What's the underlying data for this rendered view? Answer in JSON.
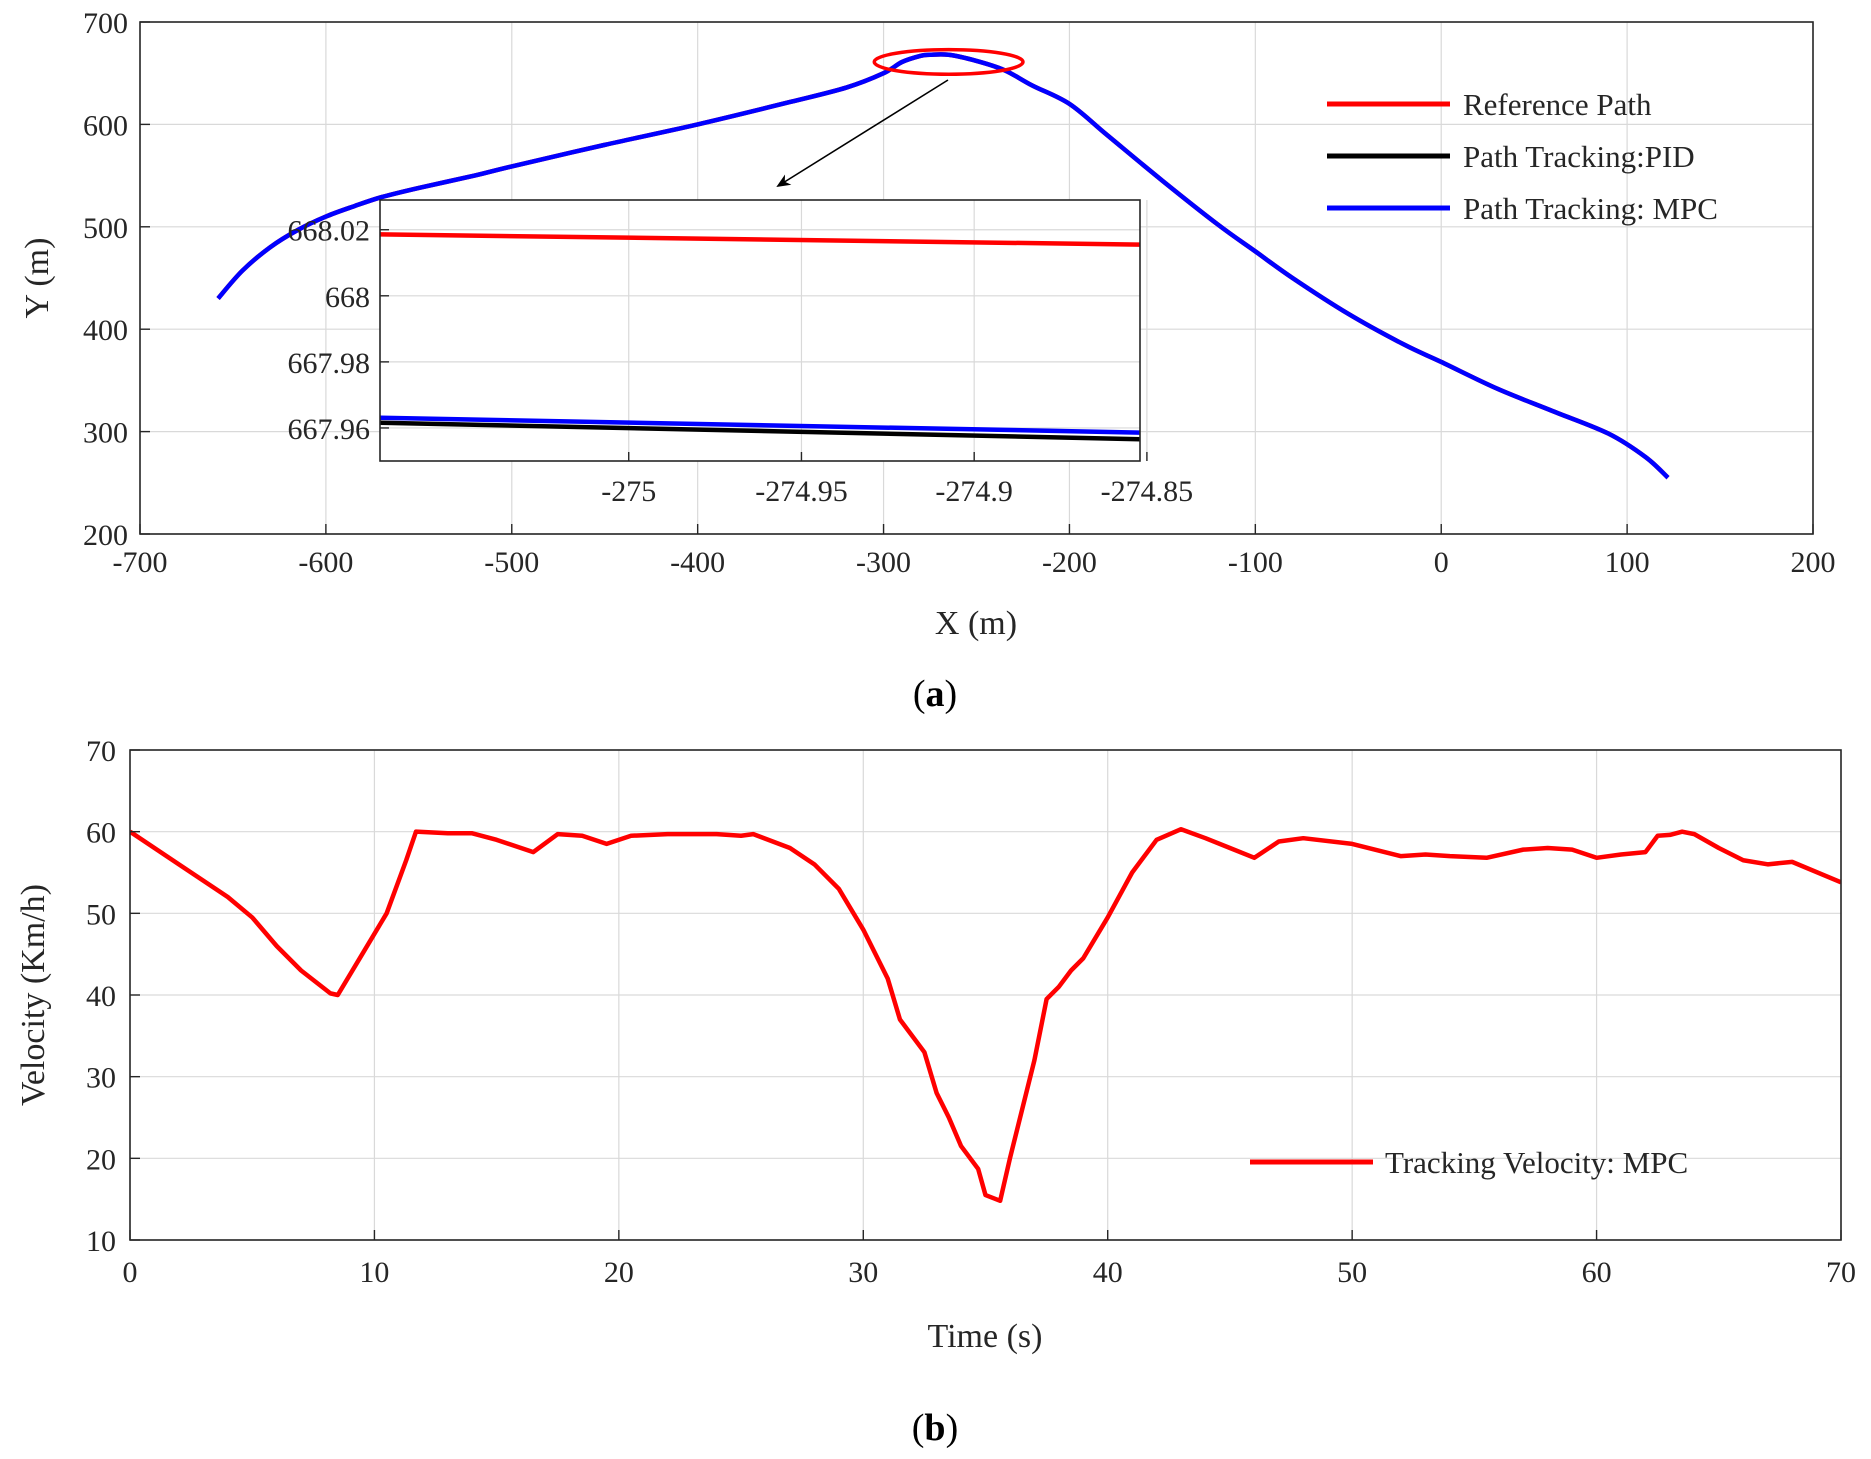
{
  "colors": {
    "reference": "#ff0000",
    "pid": "#000000",
    "mpc": "#0000ff",
    "velocity": "#ff0000",
    "highlight": "#ff0000"
  },
  "captions": {
    "a_open": "(",
    "a_letter": "a",
    "a_close": ")",
    "b_open": "(",
    "b_letter": "b",
    "b_close": ")"
  },
  "chart_data": [
    {
      "id": "a",
      "type": "line",
      "xlabel": "X (m)",
      "ylabel": "Y (m)",
      "xlim": [
        -700,
        200
      ],
      "ylim": [
        200,
        700
      ],
      "xticks": [
        -700,
        -600,
        -500,
        -400,
        -300,
        -200,
        -100,
        0,
        100,
        200
      ],
      "xtick_labels": [
        "-700",
        "-600",
        "-500",
        "-400",
        "-300",
        "-200",
        "-100",
        "0",
        "100",
        "200"
      ],
      "yticks": [
        200,
        300,
        400,
        500,
        600,
        700
      ],
      "ytick_labels": [
        "200",
        "300",
        "400",
        "500",
        "600",
        "700"
      ],
      "grid": true,
      "legend_position": "upper-right",
      "legend": [
        "Reference Path",
        "Path Tracking:PID",
        "Path Tracking: MPC"
      ],
      "highlight_region": {
        "center": [
          -265,
          661
        ],
        "half_width": [
          40,
          12
        ]
      },
      "path_points": [
        [
          -658,
          430
        ],
        [
          -645,
          457
        ],
        [
          -630,
          480
        ],
        [
          -615,
          497
        ],
        [
          -600,
          510
        ],
        [
          -585,
          520
        ],
        [
          -570,
          529
        ],
        [
          -550,
          538
        ],
        [
          -520,
          550
        ],
        [
          -500,
          559
        ],
        [
          -450,
          580
        ],
        [
          -400,
          600
        ],
        [
          -350,
          622
        ],
        [
          -320,
          636
        ],
        [
          -300,
          650
        ],
        [
          -290,
          661
        ],
        [
          -280,
          667
        ],
        [
          -275,
          668
        ],
        [
          -265,
          668
        ],
        [
          -250,
          662
        ],
        [
          -235,
          653
        ],
        [
          -220,
          638
        ],
        [
          -200,
          620
        ],
        [
          -180,
          590
        ],
        [
          -150,
          545
        ],
        [
          -120,
          502
        ],
        [
          -100,
          476
        ],
        [
          -80,
          450
        ],
        [
          -50,
          415
        ],
        [
          -20,
          385
        ],
        [
          0,
          368
        ],
        [
          30,
          342
        ],
        [
          60,
          320
        ],
        [
          90,
          298
        ],
        [
          110,
          275
        ],
        [
          122,
          255
        ]
      ],
      "inset": {
        "xlim": [
          -275.072,
          -274.852
        ],
        "ylim": [
          667.95,
          668.029
        ],
        "xticks": [
          -275,
          -274.95,
          -274.9,
          -274.85
        ],
        "xtick_labels": [
          "-275",
          "-274.95",
          "-274.9",
          "-274.85"
        ],
        "yticks": [
          667.96,
          667.98,
          668,
          668.02
        ],
        "ytick_labels": [
          "667.96",
          "667.98",
          "668",
          "668.02"
        ],
        "series": [
          {
            "name": "Reference Path",
            "x": [
              -275.072,
              -274.852
            ],
            "y": [
              668.0186,
              668.0155
            ]
          },
          {
            "name": "Path Tracking:PID",
            "x": [
              -275.072,
              -274.852
            ],
            "y": [
              667.9616,
              667.9566
            ]
          },
          {
            "name": "Path Tracking: MPC",
            "x": [
              -275.072,
              -274.852
            ],
            "y": [
              667.9631,
              667.9586
            ]
          }
        ]
      }
    },
    {
      "id": "b",
      "type": "line",
      "xlabel": "Time (s)",
      "ylabel": "Velocity (Km/h)",
      "xlim": [
        0,
        70
      ],
      "ylim": [
        10,
        70
      ],
      "xticks": [
        0,
        10,
        20,
        30,
        40,
        50,
        60,
        70
      ],
      "xtick_labels": [
        "0",
        "10",
        "20",
        "30",
        "40",
        "50",
        "60",
        "70"
      ],
      "yticks": [
        10,
        20,
        30,
        40,
        50,
        60,
        70
      ],
      "ytick_labels": [
        "10",
        "20",
        "30",
        "40",
        "50",
        "60",
        "70"
      ],
      "grid": true,
      "legend_position": "lower-right",
      "legend": [
        "Tracking Velocity: MPC"
      ],
      "series": [
        {
          "name": "Tracking Velocity: MPC",
          "x": [
            0,
            2,
            4,
            5,
            6,
            7,
            8.2,
            8.5,
            9.5,
            10.5,
            11.3,
            11.7,
            13,
            14,
            15,
            16.5,
            17.5,
            18.5,
            19.5,
            20.5,
            22,
            24,
            25,
            25.5,
            27,
            28,
            29,
            30,
            31,
            31.5,
            32.5,
            33,
            33.5,
            34,
            34.7,
            35,
            35.6,
            36,
            37,
            37.5,
            38,
            38.5,
            39,
            40,
            41,
            42,
            43,
            44,
            45,
            46,
            47,
            48,
            50,
            52,
            53,
            54,
            55.5,
            57,
            58,
            59,
            60,
            61,
            62,
            62.5,
            63,
            63.5,
            64,
            65,
            66,
            67,
            68,
            70
          ],
          "y": [
            60,
            56,
            52,
            49.5,
            46,
            43,
            40.2,
            40,
            45,
            50,
            56.5,
            60,
            59.8,
            59.8,
            59,
            57.5,
            59.7,
            59.5,
            58.5,
            59.5,
            59.7,
            59.7,
            59.5,
            59.7,
            58,
            56,
            53,
            48,
            42,
            37,
            33,
            28,
            25,
            21.5,
            18.7,
            15.5,
            14.8,
            20,
            32,
            39.5,
            41,
            43,
            44.5,
            49.5,
            55,
            59,
            60.3,
            59.2,
            58,
            56.8,
            58.8,
            59.2,
            58.5,
            57,
            57.2,
            57,
            56.8,
            57.8,
            58,
            57.8,
            56.8,
            57.2,
            57.5,
            59.5,
            59.6,
            60,
            59.7,
            58,
            56.5,
            56,
            56.3,
            53.8
          ]
        }
      ]
    }
  ]
}
